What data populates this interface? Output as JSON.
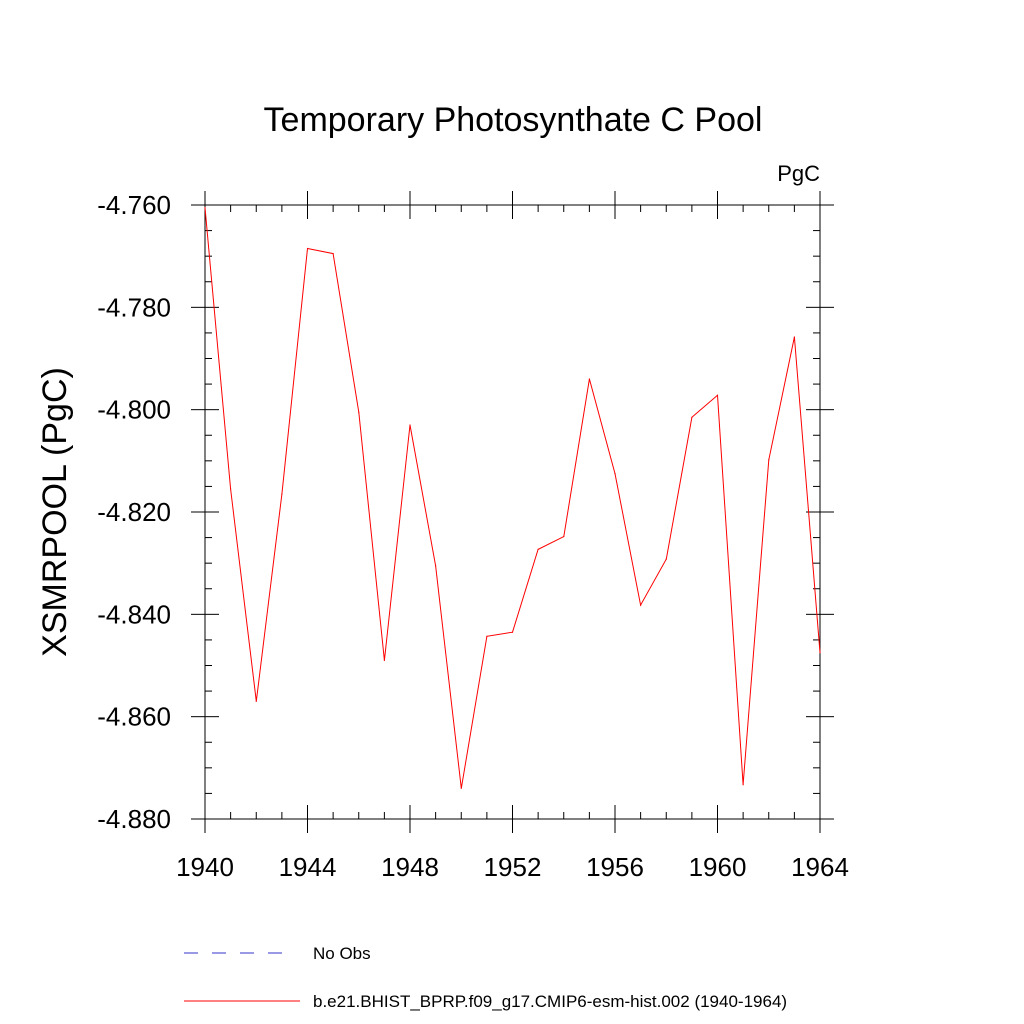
{
  "chart_data": {
    "type": "line",
    "title": "Temporary Photosynthate C Pool",
    "units_label": "PgC",
    "xlabel": "",
    "ylabel": "XSMRPOOL  (PgC)",
    "xlim": [
      1940,
      1964
    ],
    "ylim": [
      -4.88,
      -4.76
    ],
    "xticks": [
      1940,
      1944,
      1948,
      1952,
      1956,
      1960,
      1964
    ],
    "xtick_labels": [
      "1940",
      "1944",
      "1948",
      "1952",
      "1956",
      "1960",
      "1964"
    ],
    "yticks": [
      -4.88,
      -4.86,
      -4.84,
      -4.82,
      -4.8,
      -4.78,
      -4.76
    ],
    "ytick_labels": [
      "-4.880",
      "-4.860",
      "-4.840",
      "-4.820",
      "-4.800",
      "-4.780",
      "-4.760"
    ],
    "grid": false,
    "legend_position": "bottom",
    "series": [
      {
        "name": "b.e21.BHIST_BPRP.f09_g17.CMIP6-esm-hist.002 (1940-1964)",
        "color": "#ff0000",
        "style": "solid",
        "x": [
          1940,
          1941,
          1942,
          1943,
          1944,
          1945,
          1946,
          1947,
          1948,
          1949,
          1950,
          1951,
          1952,
          1953,
          1954,
          1955,
          1956,
          1957,
          1958,
          1959,
          1960,
          1961,
          1962,
          1963,
          1964
        ],
        "y": [
          -4.7605,
          -4.8155,
          -4.857,
          -4.8165,
          -4.7685,
          -4.7695,
          -4.8005,
          -4.849,
          -4.803,
          -4.8305,
          -4.874,
          -4.8443,
          -4.8435,
          -4.8273,
          -4.8248,
          -4.794,
          -4.8125,
          -4.8382,
          -4.8292,
          -4.8015,
          -4.7972,
          -4.8733,
          -4.8098,
          -4.7858,
          -4.8475
        ]
      }
    ],
    "legend": [
      {
        "label": "No Obs",
        "color": "#3333cc",
        "style": "dashed"
      },
      {
        "label": "b.e21.BHIST_BPRP.f09_g17.CMIP6-esm-hist.002 (1940-1964)",
        "color": "#ff0000",
        "style": "solid"
      }
    ]
  }
}
